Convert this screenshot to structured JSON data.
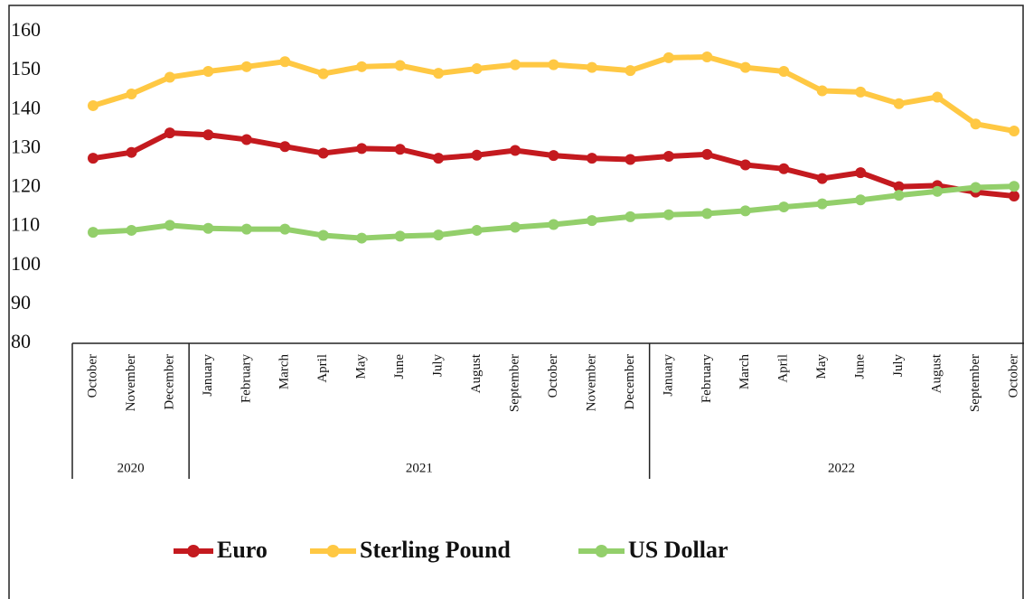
{
  "chart_data": {
    "type": "line",
    "categories": [
      "October",
      "November",
      "December",
      "January",
      "February",
      "March",
      "April",
      "May",
      "June",
      "July",
      "August",
      "September",
      "October",
      "November",
      "December",
      "January",
      "February",
      "March",
      "April",
      "May",
      "June",
      "July",
      "August",
      "September",
      "October"
    ],
    "x_groups": [
      {
        "label": "2020",
        "size": 3
      },
      {
        "label": "2021",
        "size": 12
      },
      {
        "label": "2022",
        "size": 10
      }
    ],
    "series": [
      {
        "name": "Euro",
        "color": "#c41a1f",
        "values": [
          127.5,
          129,
          134,
          133.5,
          132.3,
          130.5,
          128.8,
          130,
          129.8,
          127.5,
          128.3,
          129.5,
          128.2,
          127.5,
          127.2,
          128,
          128.5,
          125.8,
          124.8,
          122.3,
          123.8,
          120.2,
          120.5,
          118.8,
          117.8
        ]
      },
      {
        "name": "Sterling Pound",
        "color": "#ffc843",
        "values": [
          141,
          144,
          148.3,
          149.8,
          151,
          152.3,
          149.2,
          151,
          151.3,
          149.3,
          150.5,
          151.5,
          151.5,
          150.8,
          150,
          153.3,
          153.5,
          150.8,
          149.8,
          144.8,
          144.5,
          141.5,
          143.2,
          136.3,
          134.5
        ]
      },
      {
        "name": "US Dollar",
        "color": "#93cf6b",
        "values": [
          108.5,
          109,
          110.3,
          109.5,
          109.3,
          109.3,
          107.7,
          107,
          107.5,
          107.8,
          109,
          109.8,
          110.5,
          111.5,
          112.5,
          113,
          113.3,
          114,
          115,
          115.8,
          116.8,
          118,
          119,
          120,
          120.3
        ]
      }
    ],
    "ylim": [
      80,
      160
    ],
    "yticks": [
      80,
      90,
      100,
      110,
      120,
      130,
      140,
      150,
      160
    ],
    "legend": "bottom"
  }
}
